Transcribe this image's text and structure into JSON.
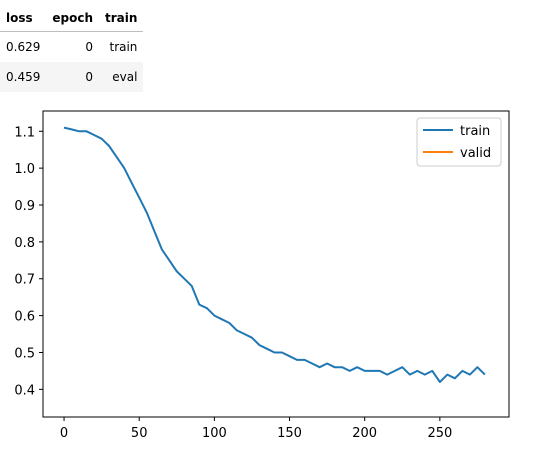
{
  "metrics_table": {
    "columns": [
      "loss",
      "epoch",
      "train"
    ],
    "rows": [
      [
        "0.629",
        "0",
        "train"
      ],
      [
        "0.459",
        "0",
        "eval"
      ]
    ]
  },
  "chart_data": {
    "type": "line",
    "title": "",
    "xlabel": "",
    "ylabel": "",
    "xlim": [
      -14,
      296
    ],
    "ylim": [
      0.325,
      1.155
    ],
    "xticks": [
      0,
      50,
      100,
      150,
      200,
      250
    ],
    "yticks": [
      0.4,
      0.5,
      0.6,
      0.7,
      0.8,
      0.9,
      1.0,
      1.1
    ],
    "grid": false,
    "legend": "top-right",
    "series": [
      {
        "name": "train",
        "color": "#1f77b4",
        "x": [
          0,
          5,
          10,
          15,
          20,
          25,
          30,
          35,
          40,
          45,
          50,
          55,
          60,
          65,
          70,
          75,
          80,
          85,
          90,
          95,
          100,
          105,
          110,
          115,
          120,
          125,
          130,
          135,
          140,
          145,
          150,
          155,
          160,
          165,
          170,
          175,
          180,
          185,
          190,
          195,
          200,
          205,
          210,
          215,
          220,
          225,
          230,
          235,
          240,
          245,
          250,
          255,
          260,
          265,
          270,
          275,
          280
        ],
        "y": [
          1.11,
          1.105,
          1.1,
          1.1,
          1.09,
          1.08,
          1.06,
          1.03,
          1.0,
          0.96,
          0.92,
          0.88,
          0.83,
          0.78,
          0.75,
          0.72,
          0.7,
          0.68,
          0.63,
          0.62,
          0.6,
          0.59,
          0.58,
          0.56,
          0.55,
          0.54,
          0.52,
          0.51,
          0.5,
          0.5,
          0.49,
          0.48,
          0.48,
          0.47,
          0.46,
          0.47,
          0.46,
          0.46,
          0.45,
          0.46,
          0.45,
          0.45,
          0.45,
          0.44,
          0.45,
          0.46,
          0.44,
          0.45,
          0.44,
          0.45,
          0.42,
          0.44,
          0.43,
          0.45,
          0.44,
          0.46,
          0.44
        ]
      },
      {
        "name": "valid",
        "color": "#ff7f0e",
        "x": [],
        "y": []
      }
    ]
  }
}
